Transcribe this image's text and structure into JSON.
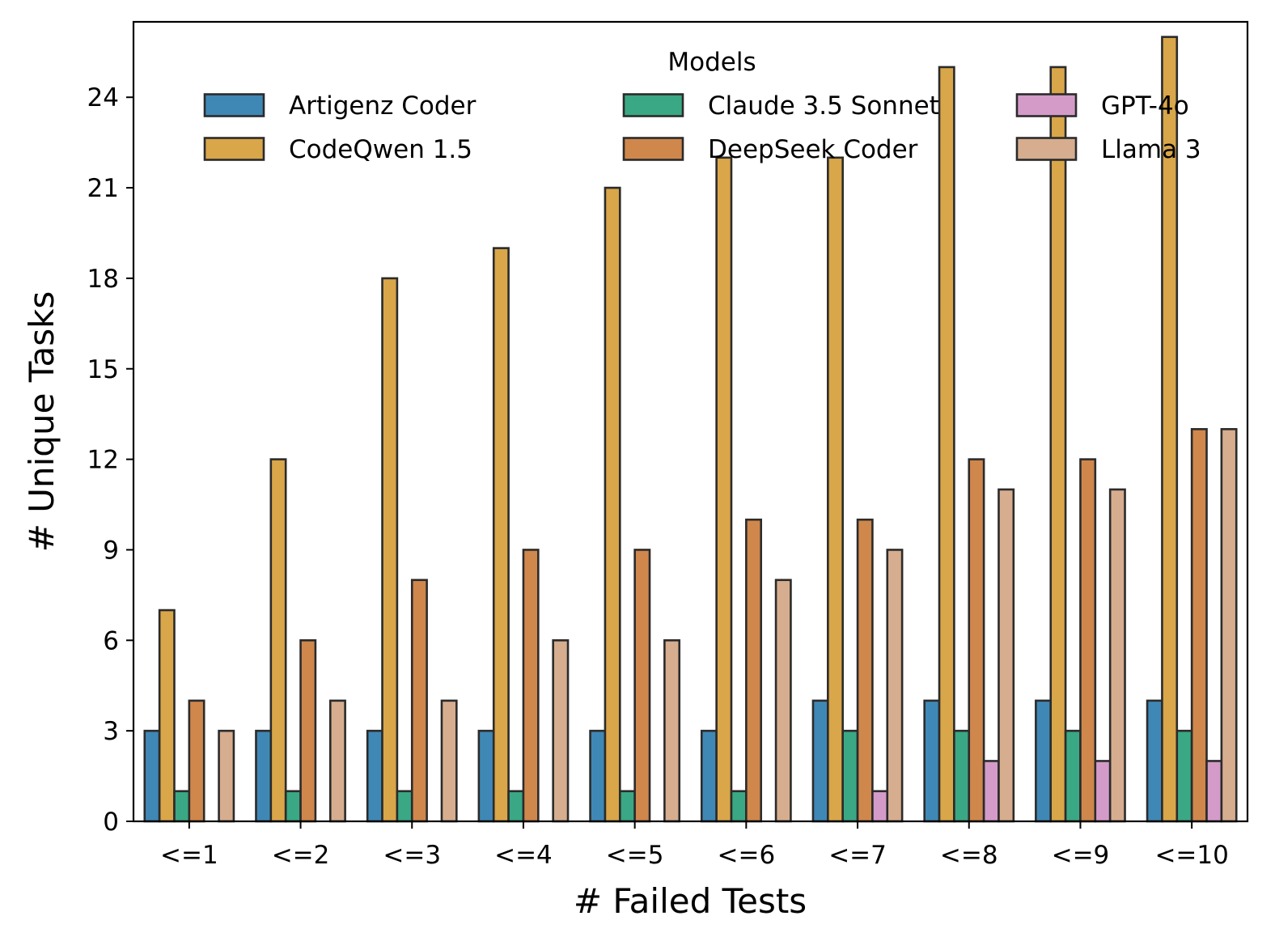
{
  "chart_data": {
    "type": "bar",
    "title": "",
    "xlabel": "# Failed Tests",
    "ylabel": "# Unique Tasks",
    "ylim": [
      0,
      26.5
    ],
    "yticks": [
      0,
      3,
      6,
      9,
      12,
      15,
      18,
      21,
      24
    ],
    "grid": false,
    "legend": {
      "title": "Models",
      "placement": "top-center",
      "columns": 3
    },
    "categories": [
      "<=1",
      "<=2",
      "<=3",
      "<=4",
      "<=5",
      "<=6",
      "<=7",
      "<=8",
      "<=9",
      "<=10"
    ],
    "series": [
      {
        "name": "Artigenz Coder",
        "color": "#3f88b6",
        "values": [
          3,
          3,
          3,
          3,
          3,
          3,
          4,
          4,
          4,
          4
        ]
      },
      {
        "name": "CodeQwen 1.5",
        "color": "#d9a649",
        "values": [
          7,
          12,
          18,
          19,
          21,
          22,
          22,
          25,
          25,
          26
        ]
      },
      {
        "name": "Claude 3.5 Sonnet",
        "color": "#3aa884",
        "values": [
          1,
          1,
          1,
          1,
          1,
          1,
          3,
          3,
          3,
          3
        ]
      },
      {
        "name": "DeepSeek Coder",
        "color": "#d0874c",
        "values": [
          4,
          6,
          8,
          9,
          9,
          10,
          10,
          12,
          12,
          13
        ]
      },
      {
        "name": "GPT-4o",
        "color": "#d49bc9",
        "values": [
          0,
          0,
          0,
          0,
          0,
          0,
          1,
          2,
          2,
          2
        ]
      },
      {
        "name": "Llama 3",
        "color": "#d6ad8e",
        "values": [
          3,
          4,
          4,
          6,
          6,
          8,
          9,
          11,
          11,
          13
        ]
      }
    ]
  }
}
